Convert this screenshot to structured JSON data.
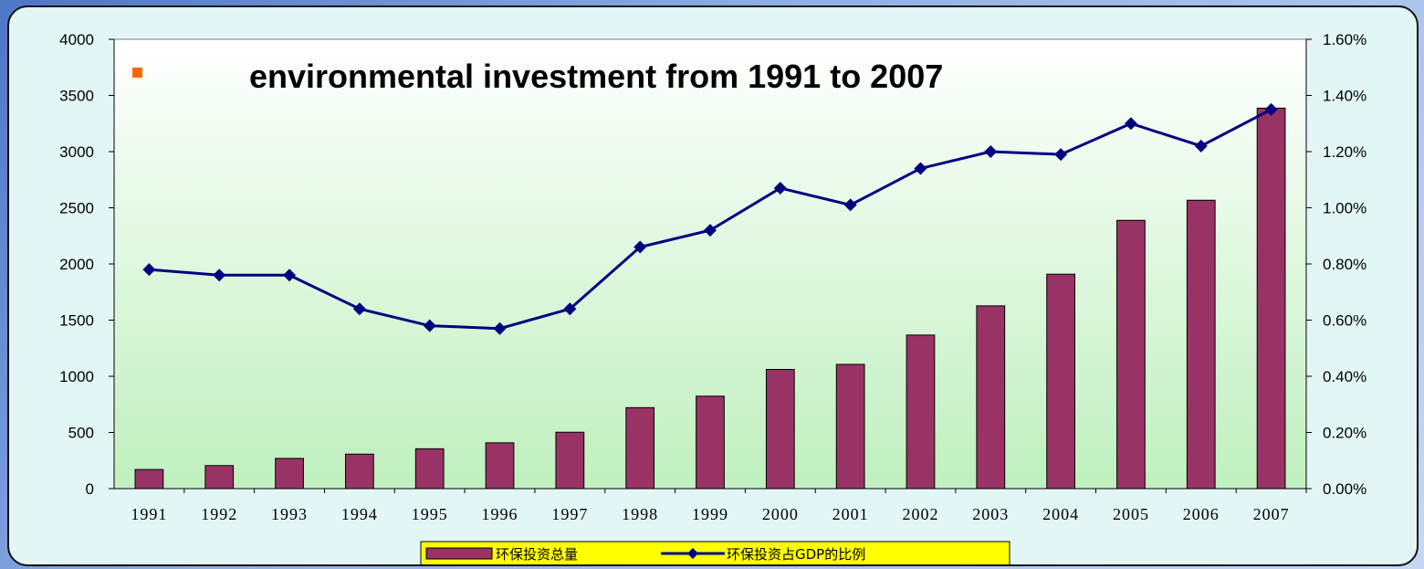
{
  "chart_data": {
    "type": "bar+line",
    "title": "environmental investment from 1991 to 2007",
    "categories": [
      "1991",
      "1992",
      "1993",
      "1994",
      "1995",
      "1996",
      "1997",
      "1998",
      "1999",
      "2000",
      "2001",
      "2002",
      "2003",
      "2004",
      "2005",
      "2006",
      "2007"
    ],
    "series": [
      {
        "name": "环保投资总量",
        "type": "bar",
        "axis": "left",
        "color": "#993366",
        "values": [
          170,
          205,
          269,
          307,
          355,
          408,
          502,
          721,
          823,
          1061,
          1106,
          1367,
          1627,
          1909,
          2388,
          2567,
          3387
        ]
      },
      {
        "name": "环保投资占GDP的比例",
        "type": "line",
        "axis": "right",
        "color": "#000080",
        "values": [
          0.78,
          0.76,
          0.76,
          0.64,
          0.58,
          0.57,
          0.64,
          0.86,
          0.92,
          1.07,
          1.01,
          1.14,
          1.2,
          1.19,
          1.3,
          1.22,
          1.35
        ]
      }
    ],
    "y_left": {
      "min": 0,
      "max": 4000,
      "ticks": [
        "0",
        "500",
        "1000",
        "1500",
        "2000",
        "2500",
        "3000",
        "3500",
        "4000"
      ]
    },
    "y_right": {
      "min": 0,
      "max": 1.6,
      "ticks": [
        "0.00%",
        "0.20%",
        "0.40%",
        "0.60%",
        "0.80%",
        "1.00%",
        "1.20%",
        "1.40%",
        "1.60%"
      ]
    },
    "xlabel": "",
    "ylabel": "",
    "grid": false,
    "legend_position": "bottom"
  }
}
